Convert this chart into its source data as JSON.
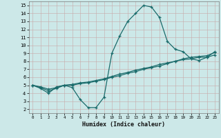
{
  "xlabel": "Humidex (Indice chaleur)",
  "bg_color": "#cce8e8",
  "grid_color": "#aacccc",
  "line_color": "#1a6b6b",
  "xlim": [
    -0.5,
    23.5
  ],
  "ylim": [
    1.5,
    15.5
  ],
  "xticks": [
    0,
    1,
    2,
    3,
    4,
    5,
    6,
    7,
    8,
    9,
    10,
    11,
    12,
    13,
    14,
    15,
    16,
    17,
    18,
    19,
    20,
    21,
    22,
    23
  ],
  "yticks": [
    2,
    3,
    4,
    5,
    6,
    7,
    8,
    9,
    10,
    11,
    12,
    13,
    14,
    15
  ],
  "line1_x": [
    0,
    1,
    2,
    3,
    4,
    5,
    6,
    7,
    8,
    9,
    10,
    11,
    12,
    13,
    14,
    15,
    16,
    17,
    18,
    19,
    20,
    21,
    22,
    23
  ],
  "line1_y": [
    5.0,
    4.6,
    4.0,
    4.8,
    5.0,
    4.7,
    3.2,
    2.2,
    2.2,
    3.5,
    9.0,
    11.2,
    13.0,
    14.0,
    15.0,
    14.8,
    13.5,
    10.5,
    9.5,
    9.2,
    8.3,
    8.1,
    8.5,
    9.2
  ],
  "line2_x": [
    0,
    1,
    2,
    3,
    4,
    5,
    6,
    7,
    8,
    9,
    10,
    11,
    12,
    13,
    14,
    15,
    16,
    17,
    18,
    19,
    20,
    21,
    22,
    23
  ],
  "line2_y": [
    5.0,
    4.8,
    4.5,
    4.7,
    5.0,
    5.1,
    5.3,
    5.4,
    5.6,
    5.8,
    6.1,
    6.4,
    6.6,
    6.9,
    7.1,
    7.3,
    7.6,
    7.8,
    8.0,
    8.3,
    8.5,
    8.6,
    8.7,
    9.1
  ],
  "line3_x": [
    0,
    1,
    2,
    3,
    4,
    5,
    6,
    7,
    8,
    9,
    10,
    11,
    12,
    13,
    14,
    15,
    16,
    17,
    18,
    19,
    20,
    21,
    22,
    23
  ],
  "line3_y": [
    5.0,
    4.7,
    4.3,
    4.6,
    5.0,
    5.0,
    5.2,
    5.3,
    5.5,
    5.7,
    6.0,
    6.2,
    6.5,
    6.7,
    7.0,
    7.2,
    7.4,
    7.7,
    8.0,
    8.2,
    8.3,
    8.5,
    8.5,
    8.8
  ]
}
